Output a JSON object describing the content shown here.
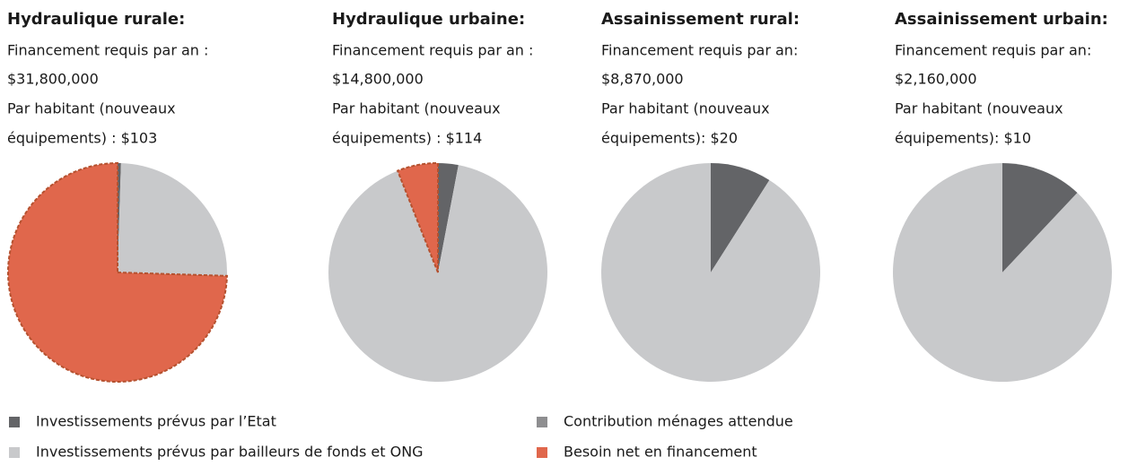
{
  "chart_data": {
    "type": "pie",
    "categories": [
      "Investissements prévus par l’Etat",
      "Investissements prévus par bailleurs de fonds et ONG",
      "Contribution ménages attendue",
      "Besoin net en financement"
    ],
    "colors": [
      "#636467",
      "#c8c9cb",
      "#8e8e90",
      "#e0674c"
    ],
    "highlight_index": 3,
    "highlight_color": "#b5512f",
    "pies": [
      {
        "title": "Hydraulique rurale:",
        "text": [
          "Financement requis par an :",
          "$31,800,000",
          "Par habitant (nouveaux",
          "équipements) : $103"
        ],
        "values": [
          0.5,
          25,
          0,
          74.5
        ]
      },
      {
        "title": "Hydraulique urbaine:",
        "text": [
          "Financement requis par an :",
          "$14,800,000",
          "Par habitant (nouveaux",
          "équipements) : $114"
        ],
        "values": [
          3,
          91,
          0,
          6
        ]
      },
      {
        "title": "Assainissement rural:",
        "text": [
          "Financement requis par an:",
          "$8,870,000",
          "Par habitant (nouveaux",
          "équipements): $20"
        ],
        "values": [
          9,
          91,
          0,
          0
        ]
      },
      {
        "title": "Assainissement urbain:",
        "text": [
          "Financement requis par an:",
          "$2,160,000",
          "Par habitant (nouveaux",
          "équipements): $10"
        ],
        "values": [
          12,
          88,
          0,
          0
        ]
      }
    ]
  }
}
